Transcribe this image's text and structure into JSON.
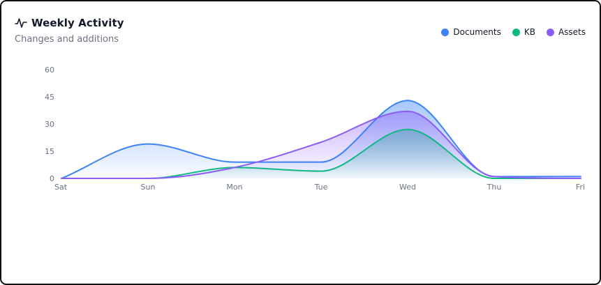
{
  "header": {
    "title": "Weekly Activity",
    "subtitle": "Changes and additions",
    "icon": "activity-icon"
  },
  "legend": [
    {
      "label": "Documents",
      "color": "#3b82f6"
    },
    {
      "label": "KB",
      "color": "#10b981"
    },
    {
      "label": "Assets",
      "color": "#8b5cf6"
    }
  ],
  "chart_data": {
    "type": "area",
    "categories": [
      "Sat",
      "Sun",
      "Mon",
      "Tue",
      "Wed",
      "Thu",
      "Fri"
    ],
    "y_ticks": [
      "0",
      "15",
      "30",
      "45",
      "60"
    ],
    "ylim": [
      0,
      60
    ],
    "grid": false,
    "legend_position": "top-right",
    "series": [
      {
        "name": "Documents",
        "color": "#3b82f6",
        "values": [
          0,
          19,
          9,
          9,
          43,
          1,
          1
        ]
      },
      {
        "name": "KB",
        "color": "#10b981",
        "values": [
          0,
          0,
          6,
          4,
          27,
          0,
          0
        ]
      },
      {
        "name": "Assets",
        "color": "#8b5cf6",
        "values": [
          0,
          0,
          6,
          20,
          37,
          1,
          0
        ]
      }
    ]
  }
}
